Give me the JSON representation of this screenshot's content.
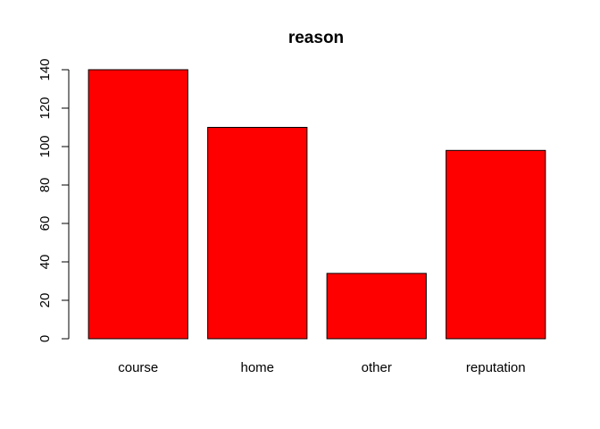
{
  "chart_data": {
    "type": "bar",
    "title": "reason",
    "xlabel": "",
    "ylabel": "",
    "categories": [
      "course",
      "home",
      "other",
      "reputation"
    ],
    "values": [
      140,
      110,
      34,
      98
    ],
    "ylim": [
      0,
      140
    ],
    "yticks": [
      "0",
      "20",
      "40",
      "60",
      "80",
      "100",
      "120",
      "140"
    ],
    "bar_color": "#ff0000",
    "grid": false,
    "legend": "none"
  }
}
